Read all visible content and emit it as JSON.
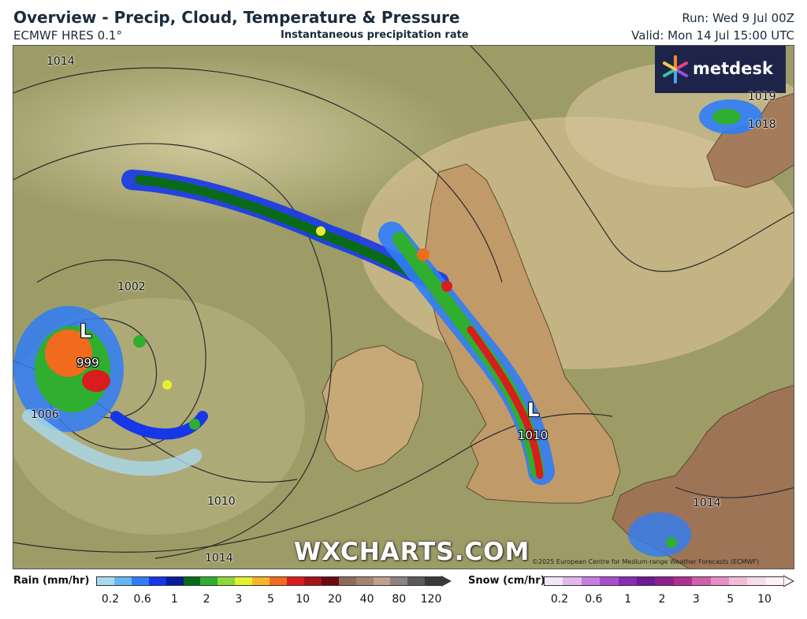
{
  "header": {
    "title": "Overview - Precip, Cloud, Temperature & Pressure",
    "model": "ECMWF HRES 0.1°",
    "subtitle": "Instantaneous precipitation rate",
    "run": "Run: Wed 9 Jul 00Z",
    "valid": "Valid: Mon 14 Jul 15:00 UTC"
  },
  "branding": {
    "logo_text": "metdesk",
    "watermark": "WXCHARTS.COM",
    "copyright": "©2025 European Centre for Medium-range Weather Forecasts (ECMWF)"
  },
  "pressure_labels": [
    "1014",
    "1002",
    "1006",
    "1010",
    "1014",
    "1019",
    "1018",
    "1014"
  ],
  "lows": [
    {
      "symbol": "L",
      "value": "999"
    },
    {
      "symbol": "L",
      "value": "1010"
    }
  ],
  "legend": {
    "rain": {
      "label": "Rain (mm/hr)",
      "ticks": [
        "0.2",
        "0.6",
        "1",
        "2",
        "3",
        "5",
        "10",
        "20",
        "40",
        "80",
        "120"
      ],
      "colors": [
        "#a9d9ee",
        "#66b7f0",
        "#2f7df6",
        "#1537e8",
        "#0b1b9a",
        "#0a6a1a",
        "#2fae2f",
        "#8fd83a",
        "#e6ef2d",
        "#f7b52a",
        "#f06b1d",
        "#d91c1c",
        "#a4121a",
        "#6b0a12",
        "#8c6b5a",
        "#a6836e",
        "#bfa08c",
        "#8b8380",
        "#5a5a5a",
        "#3a3a3a"
      ]
    },
    "snow": {
      "label": "Snow (cm/hr)",
      "ticks": [
        "0.2",
        "0.6",
        "1",
        "2",
        "3",
        "5",
        "10"
      ],
      "colors": [
        "#f3e6f6",
        "#e2b8ec",
        "#c77ee0",
        "#a84fd0",
        "#8a2ab8",
        "#6d1a96",
        "#8e1f8e",
        "#b0308f",
        "#cf5fa8",
        "#e58ec4",
        "#f2bcd9",
        "#f8dcea",
        "#fff0f7"
      ]
    }
  },
  "colors": {
    "ocean": "#a9a86b",
    "land": "#c9ab7d",
    "cloud": "#c4ba8e",
    "logo_bg": "#1d2349"
  }
}
